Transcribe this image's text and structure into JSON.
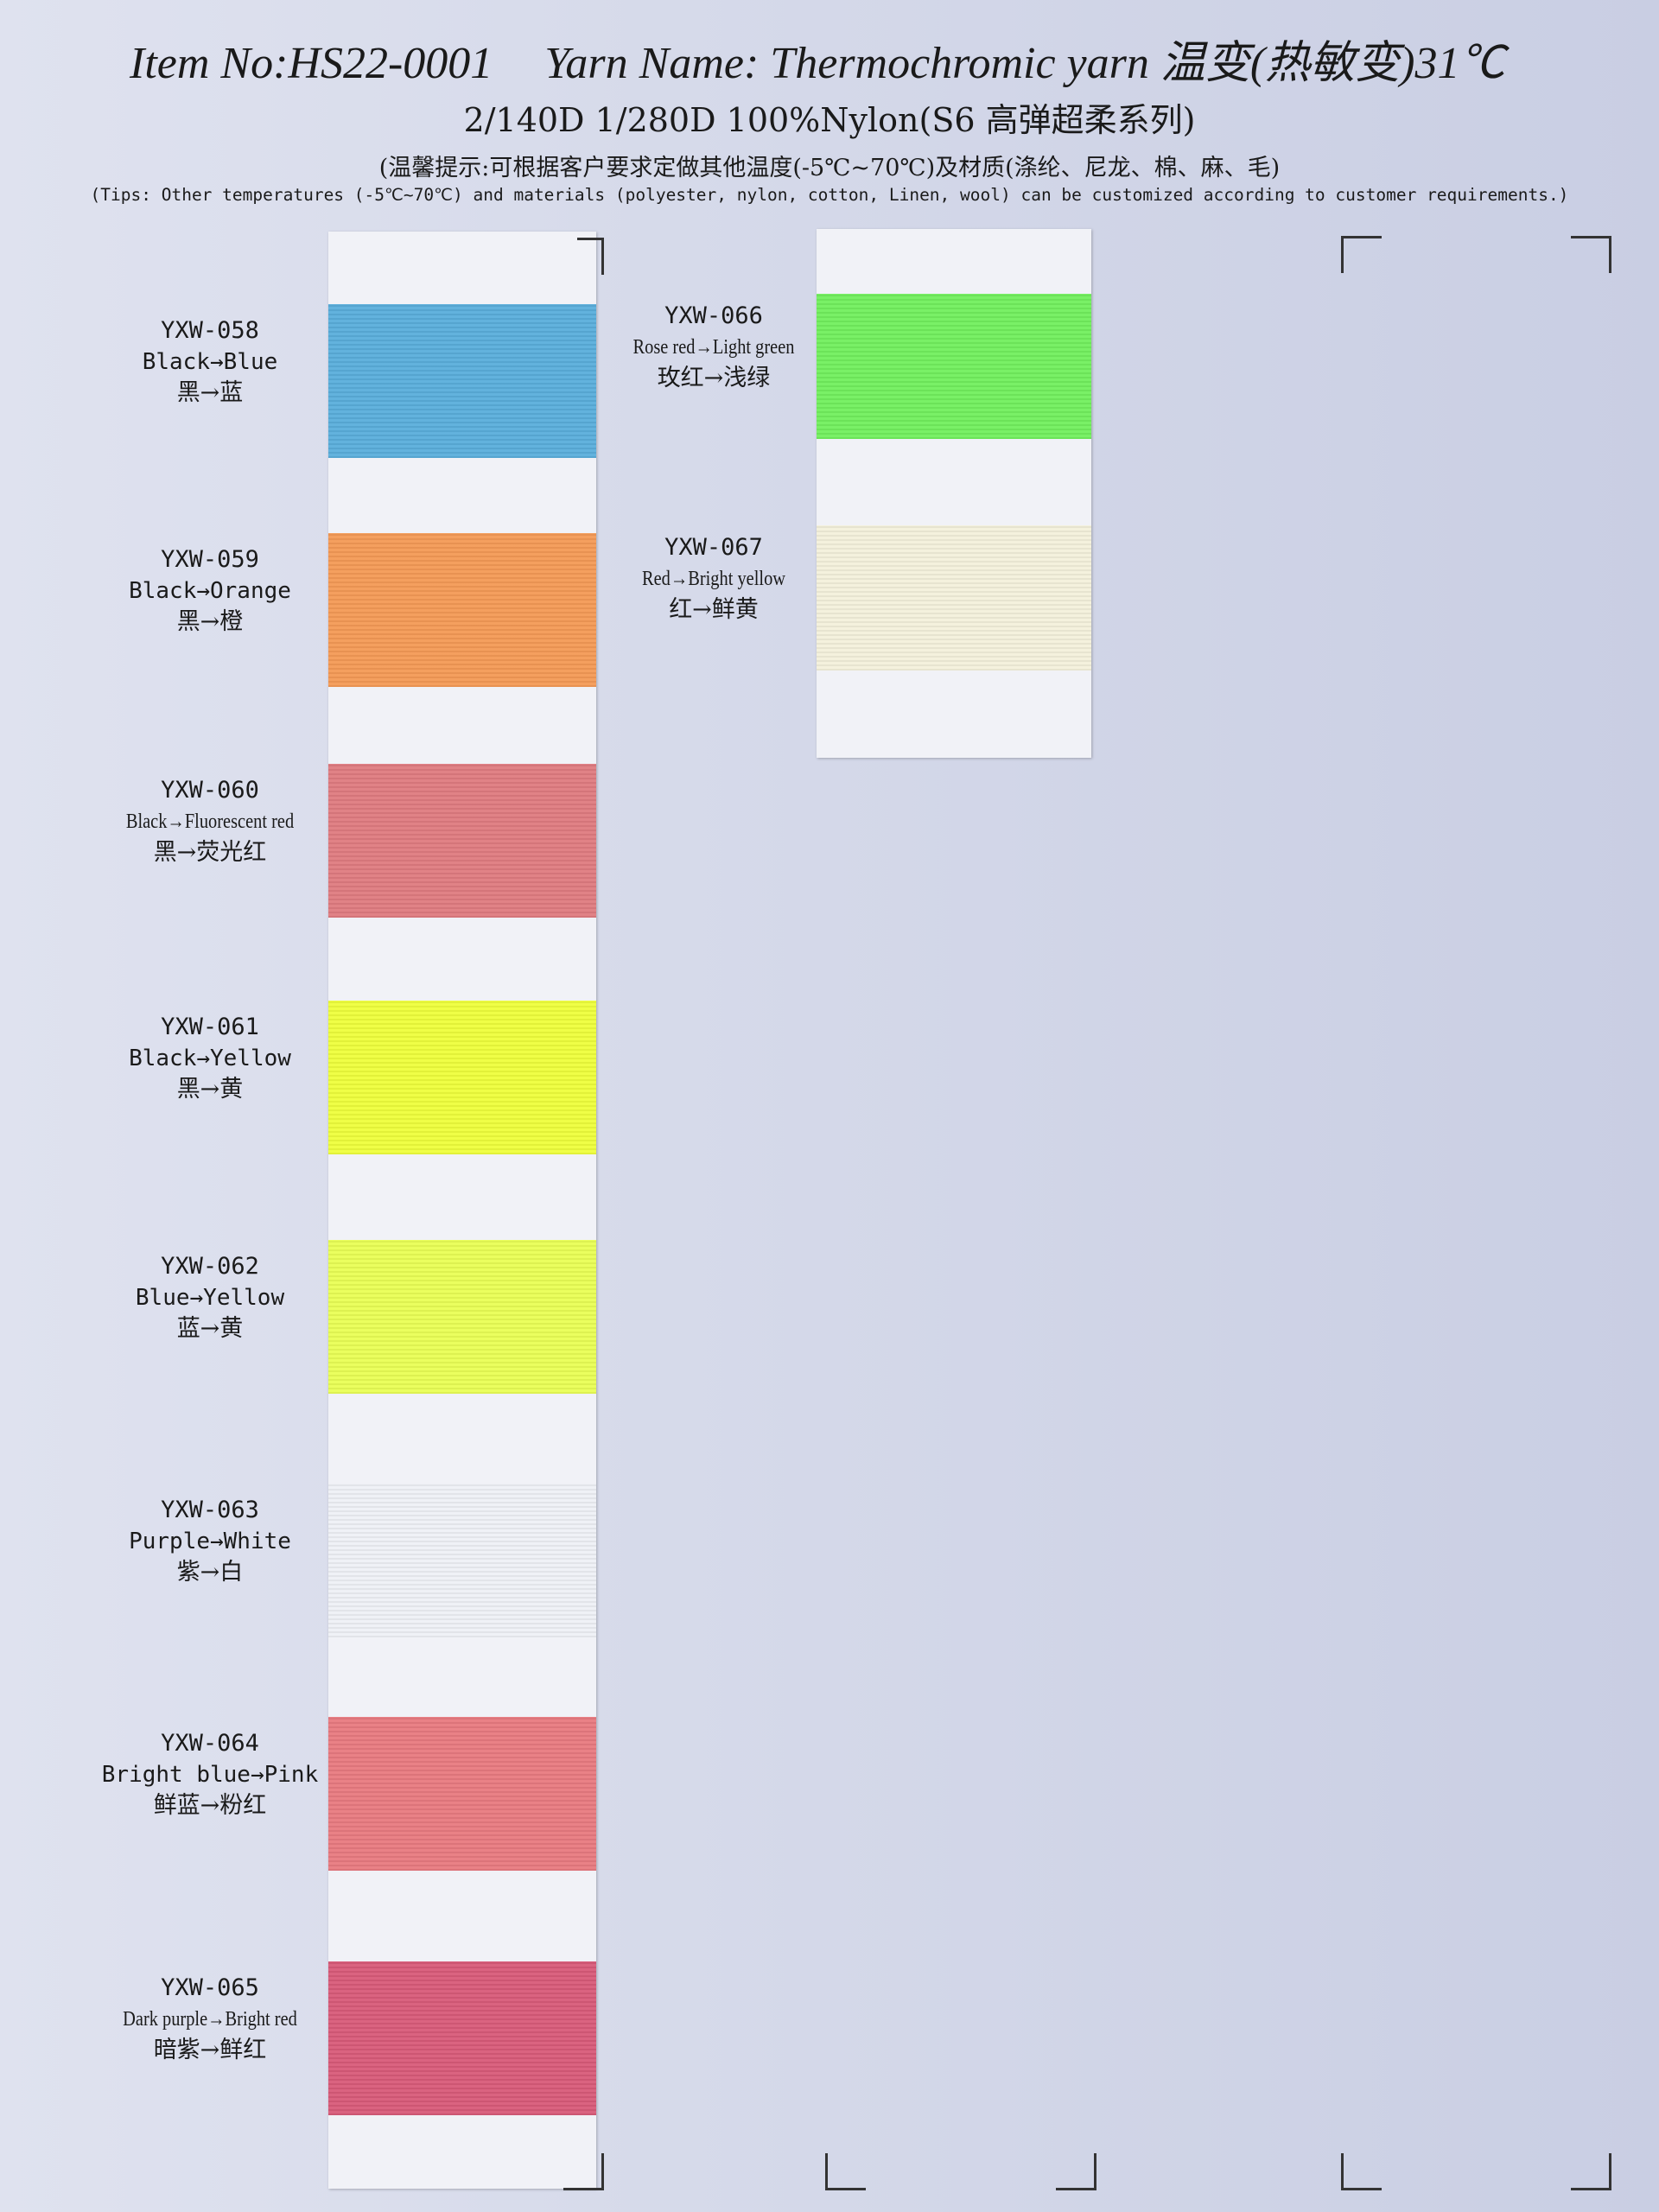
{
  "header": {
    "item_no": "Item No:HS22-0001",
    "yarn_name": "Yarn Name: Thermochromic yarn 温变(热敏变)31℃",
    "spec": "2/140D  1/280D  100%Nylon(S6 高弹超柔系列)",
    "hint_zh": "(温馨提示:可根据客户要求定做其他温度(-5℃~70℃)及材质(涤纶、尼龙、棉、麻、毛)",
    "tips_en": "(Tips: Other temperatures (-5℃~70℃) and materials (polyester, nylon, cotton, Linen, wool) can be customized according to customer requirements.)"
  },
  "left_card": [
    {
      "code": "YXW-058",
      "en": "Black→Blue",
      "zh": "黑→蓝",
      "color": "#5aaedb"
    },
    {
      "code": "YXW-059",
      "en": "Black→Orange",
      "zh": "黑→橙",
      "color": "#f49a56"
    },
    {
      "code": "YXW-060",
      "en": "Black→Fluorescent red",
      "zh": "黑→荧光红",
      "color": "#df7b80"
    },
    {
      "code": "YXW-061",
      "en": "Black→Yellow",
      "zh": "黑→黄",
      "color": "#eefe3c"
    },
    {
      "code": "YXW-062",
      "en": "Blue→Yellow",
      "zh": "蓝→黄",
      "color": "#e9fe55"
    },
    {
      "code": "YXW-063",
      "en": "Purple→White",
      "zh": "紫→白",
      "color": "#eef0f5"
    },
    {
      "code": "YXW-064",
      "en": "Bright blue→Pink",
      "zh": "鲜蓝→粉红",
      "color": "#e87a80"
    },
    {
      "code": "YXW-065",
      "en": "Dark purple→Bright red",
      "zh": "暗紫→鲜红",
      "color": "#d85b79"
    }
  ],
  "right_card": [
    {
      "code": "YXW-066",
      "en": "Rose red→Light green",
      "zh": "玫红→浅绿",
      "color": "#72ef5e"
    },
    {
      "code": "YXW-067",
      "en": "Red→Bright yellow",
      "zh": "红→鲜黄",
      "color": "#f3f0db"
    }
  ]
}
